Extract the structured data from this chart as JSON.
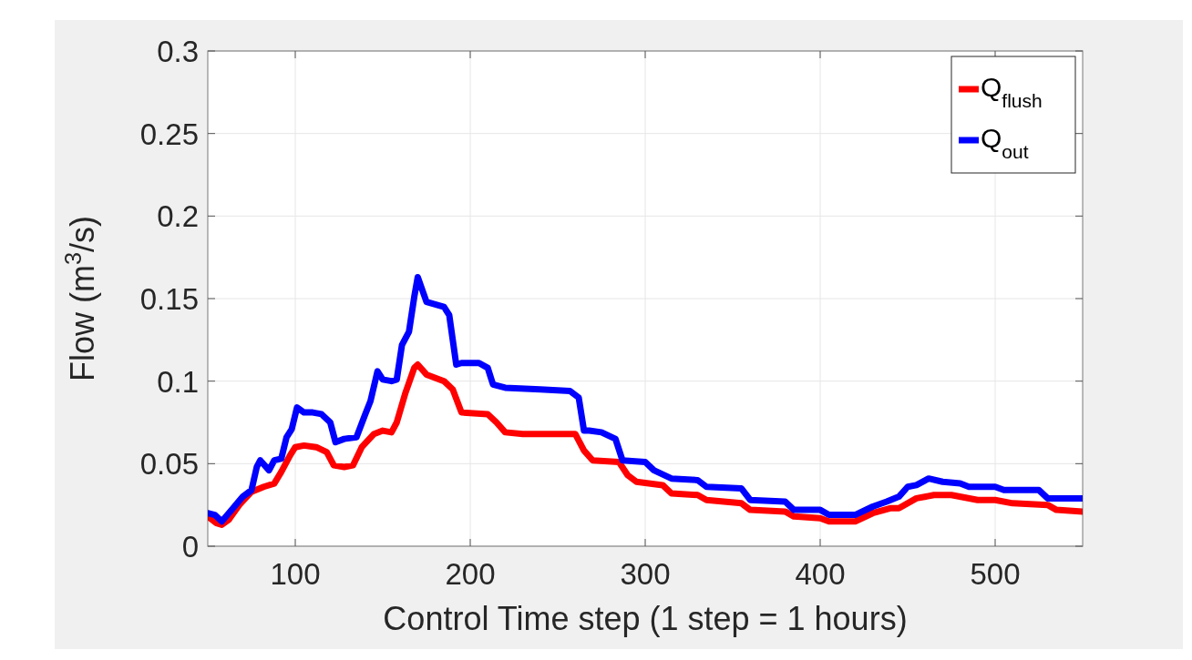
{
  "chart_data": {
    "type": "line",
    "xlabel": "Control Time step (1 step = 1 hours)",
    "ylabel": "Flow (m$^{3}$/s)",
    "xlim": [
      50,
      550
    ],
    "xticks": [
      100,
      200,
      300,
      400,
      500
    ],
    "ylim": [
      0,
      0.3
    ],
    "yticks": [
      0,
      0.05,
      0.1,
      0.15,
      0.2,
      0.25,
      0.3
    ],
    "grid": true,
    "legend": "top right",
    "line_style": "solid",
    "marker": "none",
    "series": [
      {
        "name": "Q$_{flush}$",
        "color": "#ff0000",
        "x": [
          50,
          55,
          58,
          62,
          68,
          75,
          82,
          88,
          92,
          97,
          100,
          105,
          112,
          118,
          122,
          128,
          133,
          138,
          145,
          150,
          155,
          158,
          163,
          168,
          170,
          175,
          185,
          190,
          195,
          210,
          215,
          220,
          230,
          260,
          265,
          270,
          285,
          290,
          295,
          310,
          315,
          330,
          335,
          355,
          360,
          380,
          385,
          400,
          405,
          420,
          430,
          440,
          445,
          455,
          465,
          475,
          490,
          500,
          510,
          530,
          535,
          550
        ],
        "values": [
          0.018,
          0.014,
          0.013,
          0.016,
          0.025,
          0.033,
          0.036,
          0.038,
          0.045,
          0.055,
          0.06,
          0.061,
          0.06,
          0.057,
          0.049,
          0.048,
          0.049,
          0.06,
          0.068,
          0.07,
          0.069,
          0.075,
          0.093,
          0.108,
          0.11,
          0.104,
          0.1,
          0.095,
          0.081,
          0.08,
          0.075,
          0.069,
          0.068,
          0.068,
          0.058,
          0.052,
          0.051,
          0.043,
          0.039,
          0.037,
          0.032,
          0.031,
          0.028,
          0.026,
          0.022,
          0.021,
          0.018,
          0.017,
          0.015,
          0.015,
          0.02,
          0.023,
          0.023,
          0.029,
          0.031,
          0.031,
          0.028,
          0.028,
          0.026,
          0.025,
          0.022,
          0.021
        ]
      },
      {
        "name": "Q$_{out}$",
        "color": "#0000ff",
        "x": [
          50,
          54,
          58,
          62,
          70,
          75,
          78,
          80,
          85,
          88,
          92,
          95,
          98,
          101,
          105,
          110,
          115,
          120,
          123,
          128,
          135,
          140,
          143,
          147,
          150,
          155,
          158,
          161,
          165,
          168,
          170,
          175,
          185,
          188,
          192,
          195,
          205,
          210,
          213,
          220,
          240,
          257,
          262,
          265,
          268,
          275,
          283,
          287,
          300,
          305,
          315,
          330,
          335,
          355,
          360,
          380,
          385,
          400,
          405,
          420,
          430,
          438,
          445,
          450,
          455,
          462,
          470,
          480,
          485,
          500,
          505,
          525,
          530,
          550
        ],
        "values": [
          0.02,
          0.019,
          0.015,
          0.02,
          0.03,
          0.034,
          0.048,
          0.052,
          0.046,
          0.052,
          0.053,
          0.066,
          0.071,
          0.084,
          0.081,
          0.081,
          0.08,
          0.075,
          0.063,
          0.065,
          0.066,
          0.08,
          0.088,
          0.106,
          0.101,
          0.1,
          0.101,
          0.122,
          0.13,
          0.151,
          0.163,
          0.148,
          0.145,
          0.14,
          0.11,
          0.111,
          0.111,
          0.108,
          0.098,
          0.096,
          0.095,
          0.094,
          0.09,
          0.07,
          0.07,
          0.069,
          0.065,
          0.052,
          0.051,
          0.046,
          0.041,
          0.04,
          0.036,
          0.035,
          0.028,
          0.027,
          0.022,
          0.022,
          0.019,
          0.019,
          0.024,
          0.027,
          0.03,
          0.036,
          0.037,
          0.041,
          0.039,
          0.038,
          0.036,
          0.036,
          0.034,
          0.034,
          0.029,
          0.029
        ]
      }
    ]
  }
}
